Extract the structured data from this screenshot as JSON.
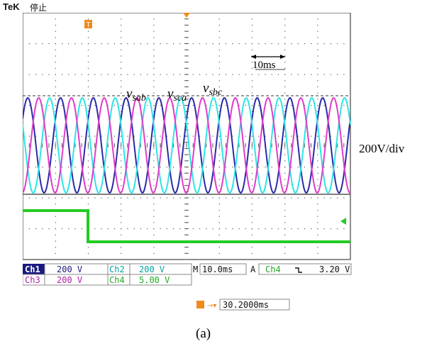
{
  "header": {
    "brand": "TeK",
    "status": "停止"
  },
  "markers": {
    "trigger_top": "T",
    "ch1": "1",
    "ch4": "4"
  },
  "annotations": {
    "time_scale": "10ms",
    "label_sab": "v",
    "label_sab_sub": "sab",
    "label_sca": "v",
    "label_sca_sub": "sca",
    "label_sbc": "v",
    "label_sbc_sub": "sbc",
    "volts_per_div": "200V/div"
  },
  "readout": {
    "ch1_label": "Ch1",
    "ch1_value": "200 V",
    "ch2_label": "Ch2",
    "ch2_value": "200 V",
    "ch3_label": "Ch3",
    "ch3_value": "200 V",
    "ch4_label": "Ch4",
    "ch4_value": "5.00 V",
    "timebase_prefix": "M",
    "timebase_value": "10.0ms",
    "trigger_mode": "A",
    "trigger_source": "Ch4",
    "trigger_level": "3.20 V",
    "position_value": "30.2000ms"
  },
  "caption": "(a)",
  "colors": {
    "ch1": "#2a2aa8",
    "ch2": "#2ee4e4",
    "ch3": "#e03cc8",
    "ch4": "#22cc22",
    "grid": "#555555",
    "label_bg": "#1a1a80"
  }
}
